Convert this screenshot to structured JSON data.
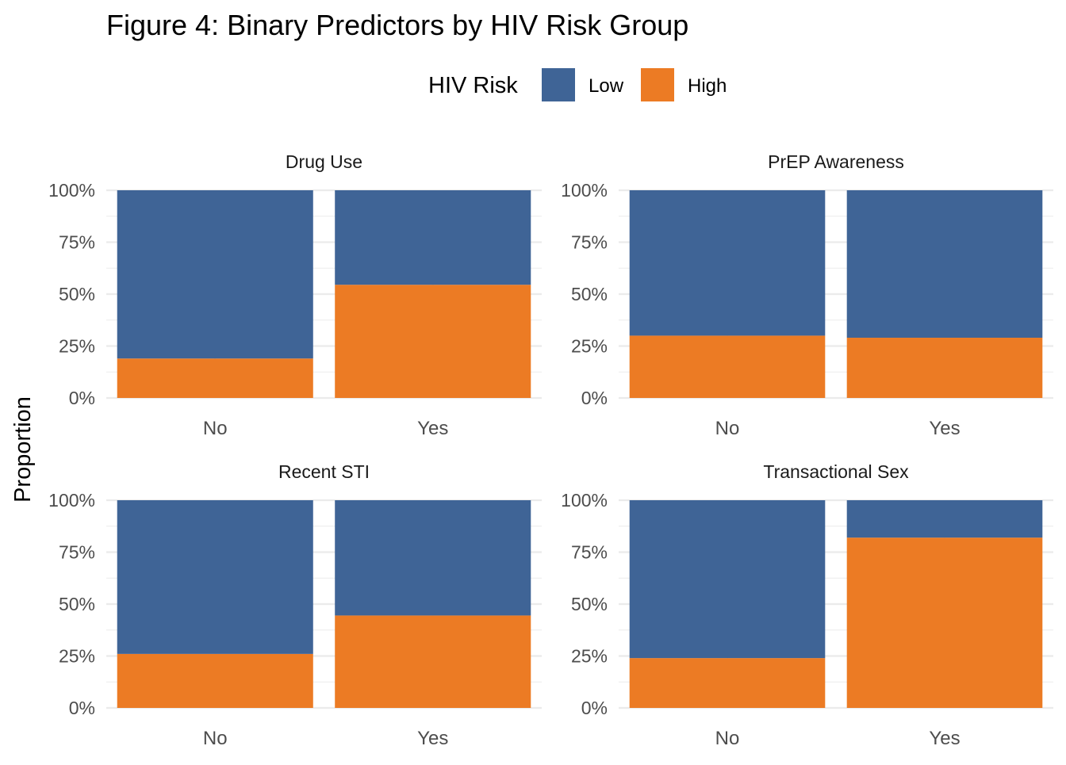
{
  "chart_data": {
    "type": "bar",
    "stacked": "proportion",
    "title": "Figure 4: Binary Predictors by HIV Risk Group",
    "ylabel": "Proportion",
    "xlabel": "",
    "ylim": [
      0,
      1
    ],
    "yticks": [
      0,
      0.25,
      0.5,
      0.75,
      1.0
    ],
    "ytick_labels": [
      "0%",
      "25%",
      "50%",
      "75%",
      "100%"
    ],
    "grid": true,
    "legend": {
      "title": "HIV Risk",
      "placement": "top",
      "entries": [
        {
          "name": "Low",
          "color": "#3F6496"
        },
        {
          "name": "High",
          "color": "#EC7B24"
        }
      ]
    },
    "categories": [
      "No",
      "Yes"
    ],
    "facets": [
      {
        "title": "Drug Use",
        "series": [
          {
            "name": "High",
            "values": [
              0.19,
              0.545
            ]
          },
          {
            "name": "Low",
            "values": [
              0.81,
              0.455
            ]
          }
        ]
      },
      {
        "title": "PrEP Awareness",
        "series": [
          {
            "name": "High",
            "values": [
              0.3,
              0.29
            ]
          },
          {
            "name": "Low",
            "values": [
              0.7,
              0.71
            ]
          }
        ]
      },
      {
        "title": "Recent STI",
        "series": [
          {
            "name": "High",
            "values": [
              0.26,
              0.445
            ]
          },
          {
            "name": "Low",
            "values": [
              0.74,
              0.555
            ]
          }
        ]
      },
      {
        "title": "Transactional Sex",
        "series": [
          {
            "name": "High",
            "values": [
              0.24,
              0.82
            ]
          },
          {
            "name": "Low",
            "values": [
              0.76,
              0.18
            ]
          }
        ]
      }
    ]
  }
}
